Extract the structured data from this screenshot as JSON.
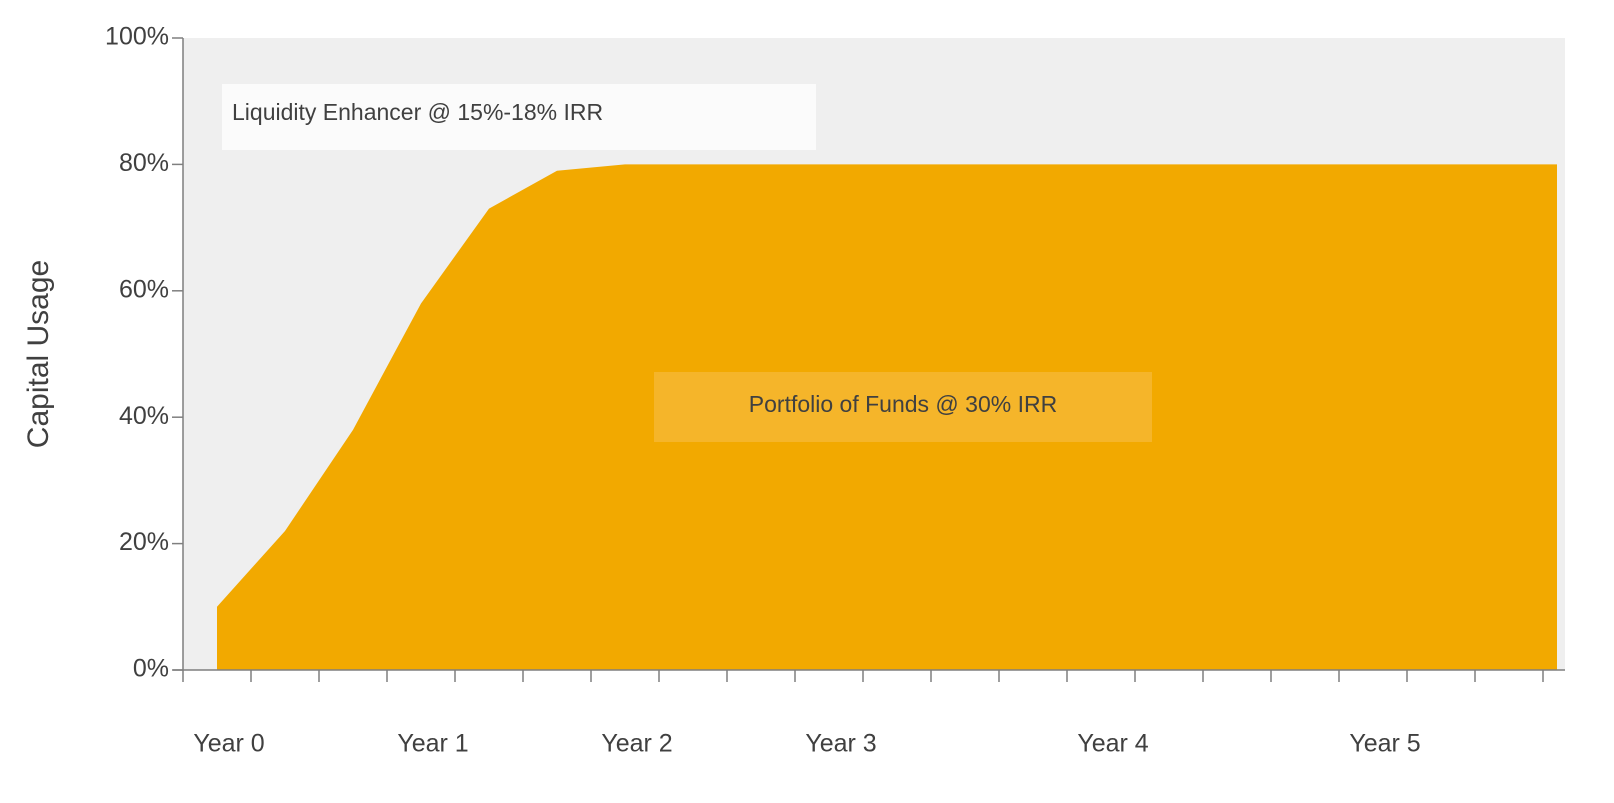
{
  "chart_data": {
    "type": "area",
    "ylabel": "Capital Usage",
    "categories": [
      "Year 0",
      null,
      null,
      "Year 1",
      null,
      null,
      "Year 2",
      null,
      null,
      "Year 3",
      null,
      null,
      null,
      "Year 4",
      null,
      null,
      null,
      "Year 5",
      null,
      null
    ],
    "values": [
      10,
      22,
      38,
      58,
      73,
      79,
      80,
      80,
      80,
      80,
      80,
      80,
      80,
      80,
      80,
      80,
      80,
      80,
      80,
      80
    ],
    "color": "#f2a900",
    "background_color": "#efefef",
    "ylim": [
      0,
      100
    ],
    "yticks": [
      {
        "value": 0,
        "label": "0%"
      },
      {
        "value": 20,
        "label": "20%"
      },
      {
        "value": 40,
        "label": "40%"
      },
      {
        "value": 60,
        "label": "60%"
      },
      {
        "value": 80,
        "label": "80%"
      },
      {
        "value": 100,
        "label": "100%"
      }
    ],
    "annotations": [
      "Liquidity Enhancer @ 15%-18% IRR",
      "Portfolio of Funds @ 30% IRR"
    ]
  }
}
